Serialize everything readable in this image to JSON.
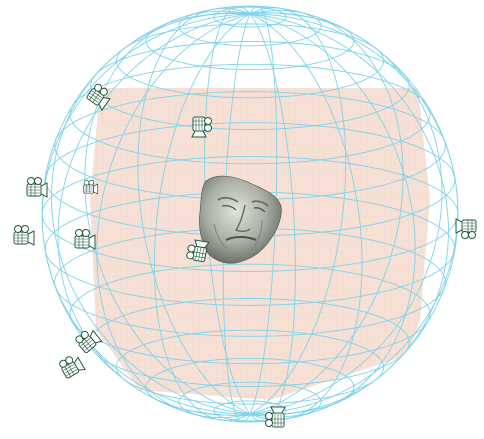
{
  "scene": {
    "colors": {
      "wireframe": "#7fd3ea",
      "plane_fill": "#f7e1d6",
      "plane_grid": "#ead2c6",
      "camera_stroke": "#1f5a3a",
      "face_light": "#c3c8bc",
      "face_dark": "#5e665e"
    },
    "icons": {
      "sphere": "wireframe-sphere",
      "camera": "camera-icon",
      "face": "3d-face-model"
    }
  }
}
